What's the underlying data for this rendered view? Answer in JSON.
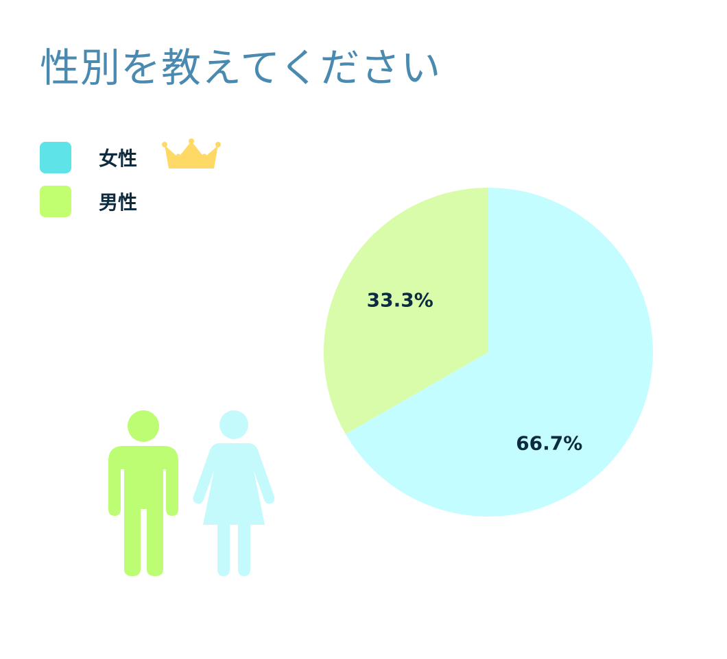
{
  "header": {
    "title": "性別を教えてください"
  },
  "legend": {
    "items": [
      {
        "label": "女性",
        "color": "#5ee3e8",
        "icon": "crown-icon"
      },
      {
        "label": "男性",
        "color": "#c2ff70"
      }
    ]
  },
  "chart_data": {
    "type": "pie",
    "title": "性別を教えてください",
    "categories": [
      "女性",
      "男性"
    ],
    "values": [
      66.7,
      33.3
    ],
    "labels": [
      "66.7%",
      "33.3%"
    ],
    "slice_colors": [
      "#c4fdff",
      "#d9fcab"
    ],
    "legend_position": "top-left"
  },
  "illustration": {
    "male_color": "#bdfd73",
    "female_color": "#c4fafc",
    "icons": [
      "man-figure-icon",
      "woman-figure-icon"
    ]
  }
}
